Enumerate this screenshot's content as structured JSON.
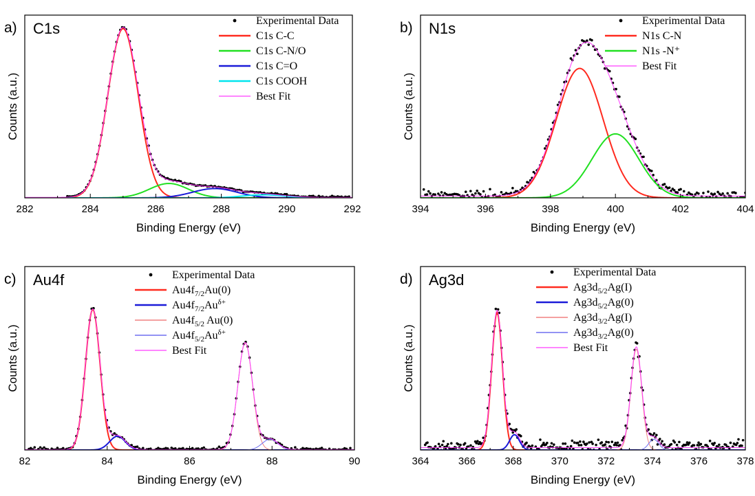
{
  "colors": {
    "data": "#000000",
    "red": "#ff2a1f",
    "green": "#21e021",
    "blue": "#1a1ad8",
    "cyan": "#00e5ee",
    "magenta": "#ff3cff",
    "thin_red": "#f08080",
    "thin_blue": "#6f6ff0"
  },
  "chart_data": [
    {
      "type": "scatter",
      "panel_letter": "a)",
      "title": "C1s",
      "xlabel": "Binding Energy (eV)",
      "ylabel": "Counts (a.u.)",
      "xlim": [
        282,
        292
      ],
      "ylim": [
        0,
        1.08
      ],
      "xticks": [
        "282",
        "284",
        "286",
        "288",
        "290",
        "292"
      ],
      "xtick_values": [
        282,
        284,
        286,
        288,
        290,
        292
      ],
      "grid": false,
      "legend_position": "top-right",
      "experimental": {
        "name": "Experimental Data",
        "x_range": [
          283.3,
          291.9
        ],
        "count": 150,
        "noise": 0.004,
        "baseline": 0.01
      },
      "series": [
        {
          "name": "C1s C-C",
          "color": "red",
          "width": 2,
          "center": 285.0,
          "amplitude": 1.0,
          "fwhm": 1.1
        },
        {
          "name": "C1s C-N/O",
          "color": "green",
          "width": 2,
          "center": 286.4,
          "amplitude": 0.085,
          "fwhm": 1.4
        },
        {
          "name": "C1s C=O",
          "color": "blue",
          "width": 2,
          "center": 287.8,
          "amplitude": 0.055,
          "fwhm": 1.6
        },
        {
          "name": "C1s COOH",
          "color": "cyan",
          "width": 2,
          "center": 289.3,
          "amplitude": 0.018,
          "fwhm": 1.5
        },
        {
          "name": "Best Fit",
          "color": "magenta",
          "width": 1,
          "fit": true
        }
      ]
    },
    {
      "type": "scatter",
      "panel_letter": "b)",
      "title": "N1s",
      "xlabel": "Binding Energy (eV)",
      "ylabel": "Counts (a.u.)",
      "xlim": [
        394,
        404
      ],
      "ylim": [
        0,
        1.2
      ],
      "xticks": [
        "394",
        "396",
        "398",
        "400",
        "402",
        "404"
      ],
      "xtick_values": [
        394,
        396,
        398,
        400,
        402,
        404
      ],
      "grid": false,
      "legend_position": "top-right",
      "experimental": {
        "name": "Experimental Data",
        "x_range": [
          394.1,
          404.0
        ],
        "count": 200,
        "noise": 0.025,
        "baseline": 0.04
      },
      "series": [
        {
          "name": "N1s C-N",
          "color": "red",
          "width": 2,
          "center": 398.9,
          "amplitude": 0.85,
          "fwhm": 1.7
        },
        {
          "name": "N1s -N⁺",
          "color": "green",
          "width": 2,
          "center": 400.0,
          "amplitude": 0.42,
          "fwhm": 1.7
        },
        {
          "name": "Best Fit",
          "color": "magenta",
          "width": 1,
          "fit": true
        }
      ]
    },
    {
      "type": "scatter",
      "panel_letter": "c)",
      "title": "Au4f",
      "xlabel": "Binding Energy (eV)",
      "ylabel": "Counts (a.u.)",
      "xlim": [
        82,
        90
      ],
      "ylim": [
        0,
        1.2
      ],
      "xticks": [
        "82",
        "84",
        "86",
        "88",
        "90"
      ],
      "xtick_values": [
        82,
        84,
        86,
        88,
        90
      ],
      "grid": false,
      "legend_position": "top-right",
      "experimental": {
        "name": "Experimental Data",
        "x_range": [
          82.1,
          89.9
        ],
        "count": 170,
        "noise": 0.012,
        "baseline": 0.01
      },
      "series": [
        {
          "name": "Au4f",
          "sub": "7/2",
          "name2": "Au(0)",
          "sup": "",
          "color": "red",
          "width": 2,
          "center": 83.65,
          "amplitude": 0.92,
          "fwhm": 0.42
        },
        {
          "name": "Au4f",
          "sub": "7/2",
          "name2": "Au",
          "sup": "δ+",
          "color": "blue",
          "width": 2,
          "center": 84.25,
          "amplitude": 0.09,
          "fwhm": 0.45
        },
        {
          "name": "Au4f",
          "sub": "5/2",
          "name2": " Au(0)",
          "sup": "",
          "color": "thin_red",
          "width": 1,
          "center": 87.35,
          "amplitude": 0.7,
          "fwhm": 0.42
        },
        {
          "name": "Au4f",
          "sub": "5/2",
          "name2": "Au",
          "sup": "δ+",
          "color": "thin_blue",
          "width": 1,
          "center": 87.95,
          "amplitude": 0.07,
          "fwhm": 0.45
        },
        {
          "name": "Best Fit",
          "color": "magenta",
          "width": 1,
          "fit": true
        }
      ]
    },
    {
      "type": "scatter",
      "panel_letter": "d)",
      "title": "Ag3d",
      "xlabel": "Binding Energy (eV)",
      "ylabel": "Counts (a.u.)",
      "xlim": [
        364,
        378
      ],
      "ylim": [
        0,
        1.2
      ],
      "xticks": [
        "364",
        "366",
        "368",
        "370",
        "372",
        "374",
        "376",
        "378"
      ],
      "xtick_values": [
        364,
        366,
        368,
        370,
        372,
        374,
        376,
        378
      ],
      "grid": false,
      "legend_position": "top-right",
      "experimental": {
        "name": "Experimental Data",
        "x_range": [
          364.2,
          377.9
        ],
        "count": 280,
        "noise": 0.035,
        "baseline": 0.05
      },
      "series": [
        {
          "name": "Ag3d",
          "sub": "5/2",
          "name2": "Ag(I)",
          "sup": "",
          "color": "red",
          "width": 2,
          "center": 367.3,
          "amplitude": 0.9,
          "fwhm": 0.55
        },
        {
          "name": "Ag3d",
          "sub": "5/2",
          "name2": "Ag(0)",
          "sup": "",
          "color": "blue",
          "width": 2,
          "center": 368.05,
          "amplitude": 0.1,
          "fwhm": 0.5
        },
        {
          "name": "Ag3d",
          "sub": "3/2",
          "name2": "Ag(I)",
          "sup": "",
          "color": "thin_red",
          "width": 1,
          "center": 373.3,
          "amplitude": 0.66,
          "fwhm": 0.55
        },
        {
          "name": "Ag3d",
          "sub": "3/2",
          "name2": "Ag(0)",
          "sup": "",
          "color": "thin_blue",
          "width": 1,
          "center": 374.05,
          "amplitude": 0.07,
          "fwhm": 0.5
        },
        {
          "name": "Best Fit",
          "color": "magenta",
          "width": 1,
          "fit": true
        }
      ]
    }
  ]
}
